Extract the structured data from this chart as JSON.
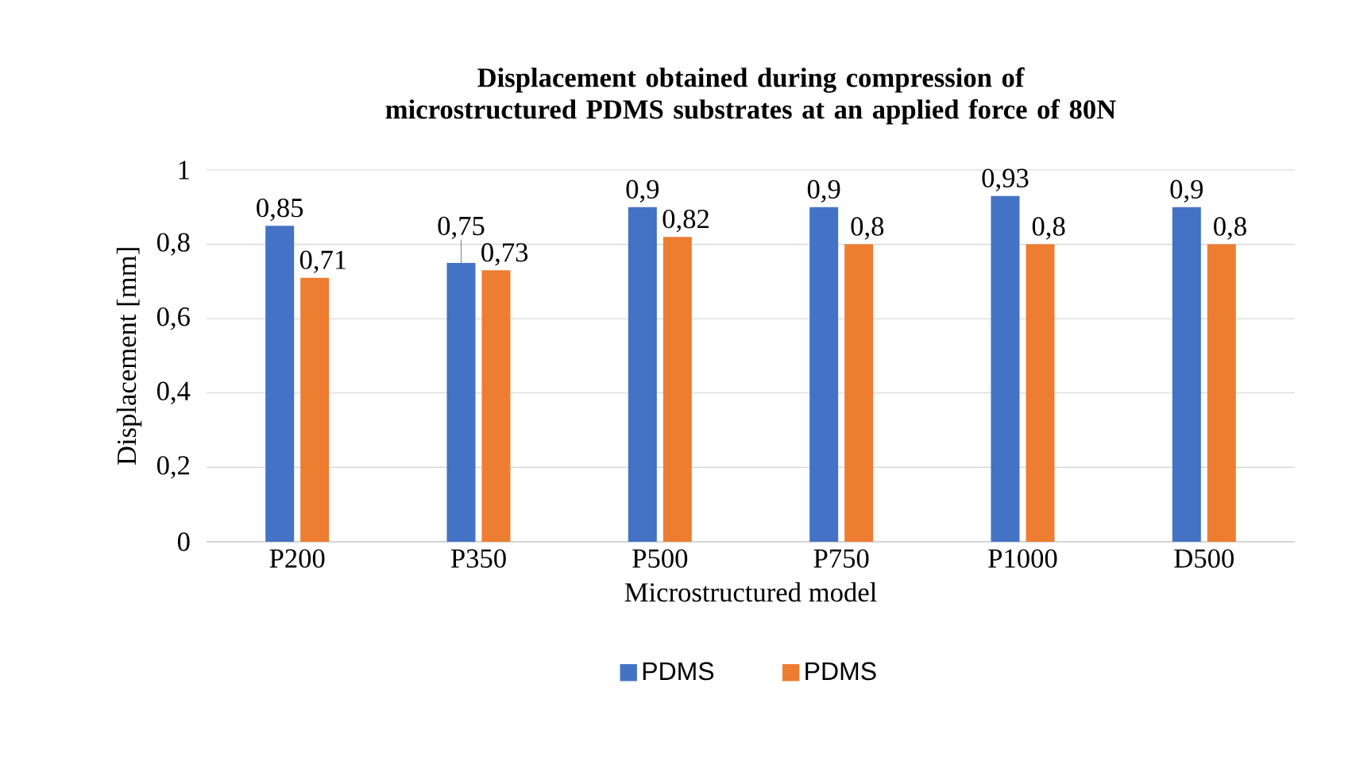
{
  "chart_data": {
    "type": "bar",
    "title": "Displacement obtained during  compression of microstructured PDMS substrates at an applied force of 80N",
    "xlabel": "Microstructured model",
    "ylabel": "Displacement [mm]",
    "categories": [
      "P200",
      "P350",
      "P500",
      "P750",
      "P1000",
      "D500"
    ],
    "series": [
      {
        "name": "PDMS",
        "color": "#4472c4",
        "values": [
          0.85,
          0.75,
          0.9,
          0.9,
          0.93,
          0.9
        ],
        "value_labels": [
          "0,85",
          "0,75",
          "0,9",
          "0,9",
          "0,93",
          "0,9"
        ]
      },
      {
        "name": "PDMS",
        "color": "#ed7d31",
        "values": [
          0.71,
          0.73,
          0.82,
          0.8,
          0.8,
          0.8
        ],
        "value_labels": [
          "0,71",
          "0,73",
          "0,82",
          "0,8",
          "0,8",
          "0,8"
        ]
      }
    ],
    "ylim": [
      0,
      1
    ],
    "yticks": [
      0,
      {
        "value": 0.2,
        "label": "0,2"
      },
      {
        "value": 0.4,
        "label": "0,4"
      },
      {
        "value": 0.6,
        "label": "0,6"
      },
      {
        "value": 0.8,
        "label": "0,8"
      },
      1
    ],
    "grid": "y",
    "legend": "bottom"
  }
}
